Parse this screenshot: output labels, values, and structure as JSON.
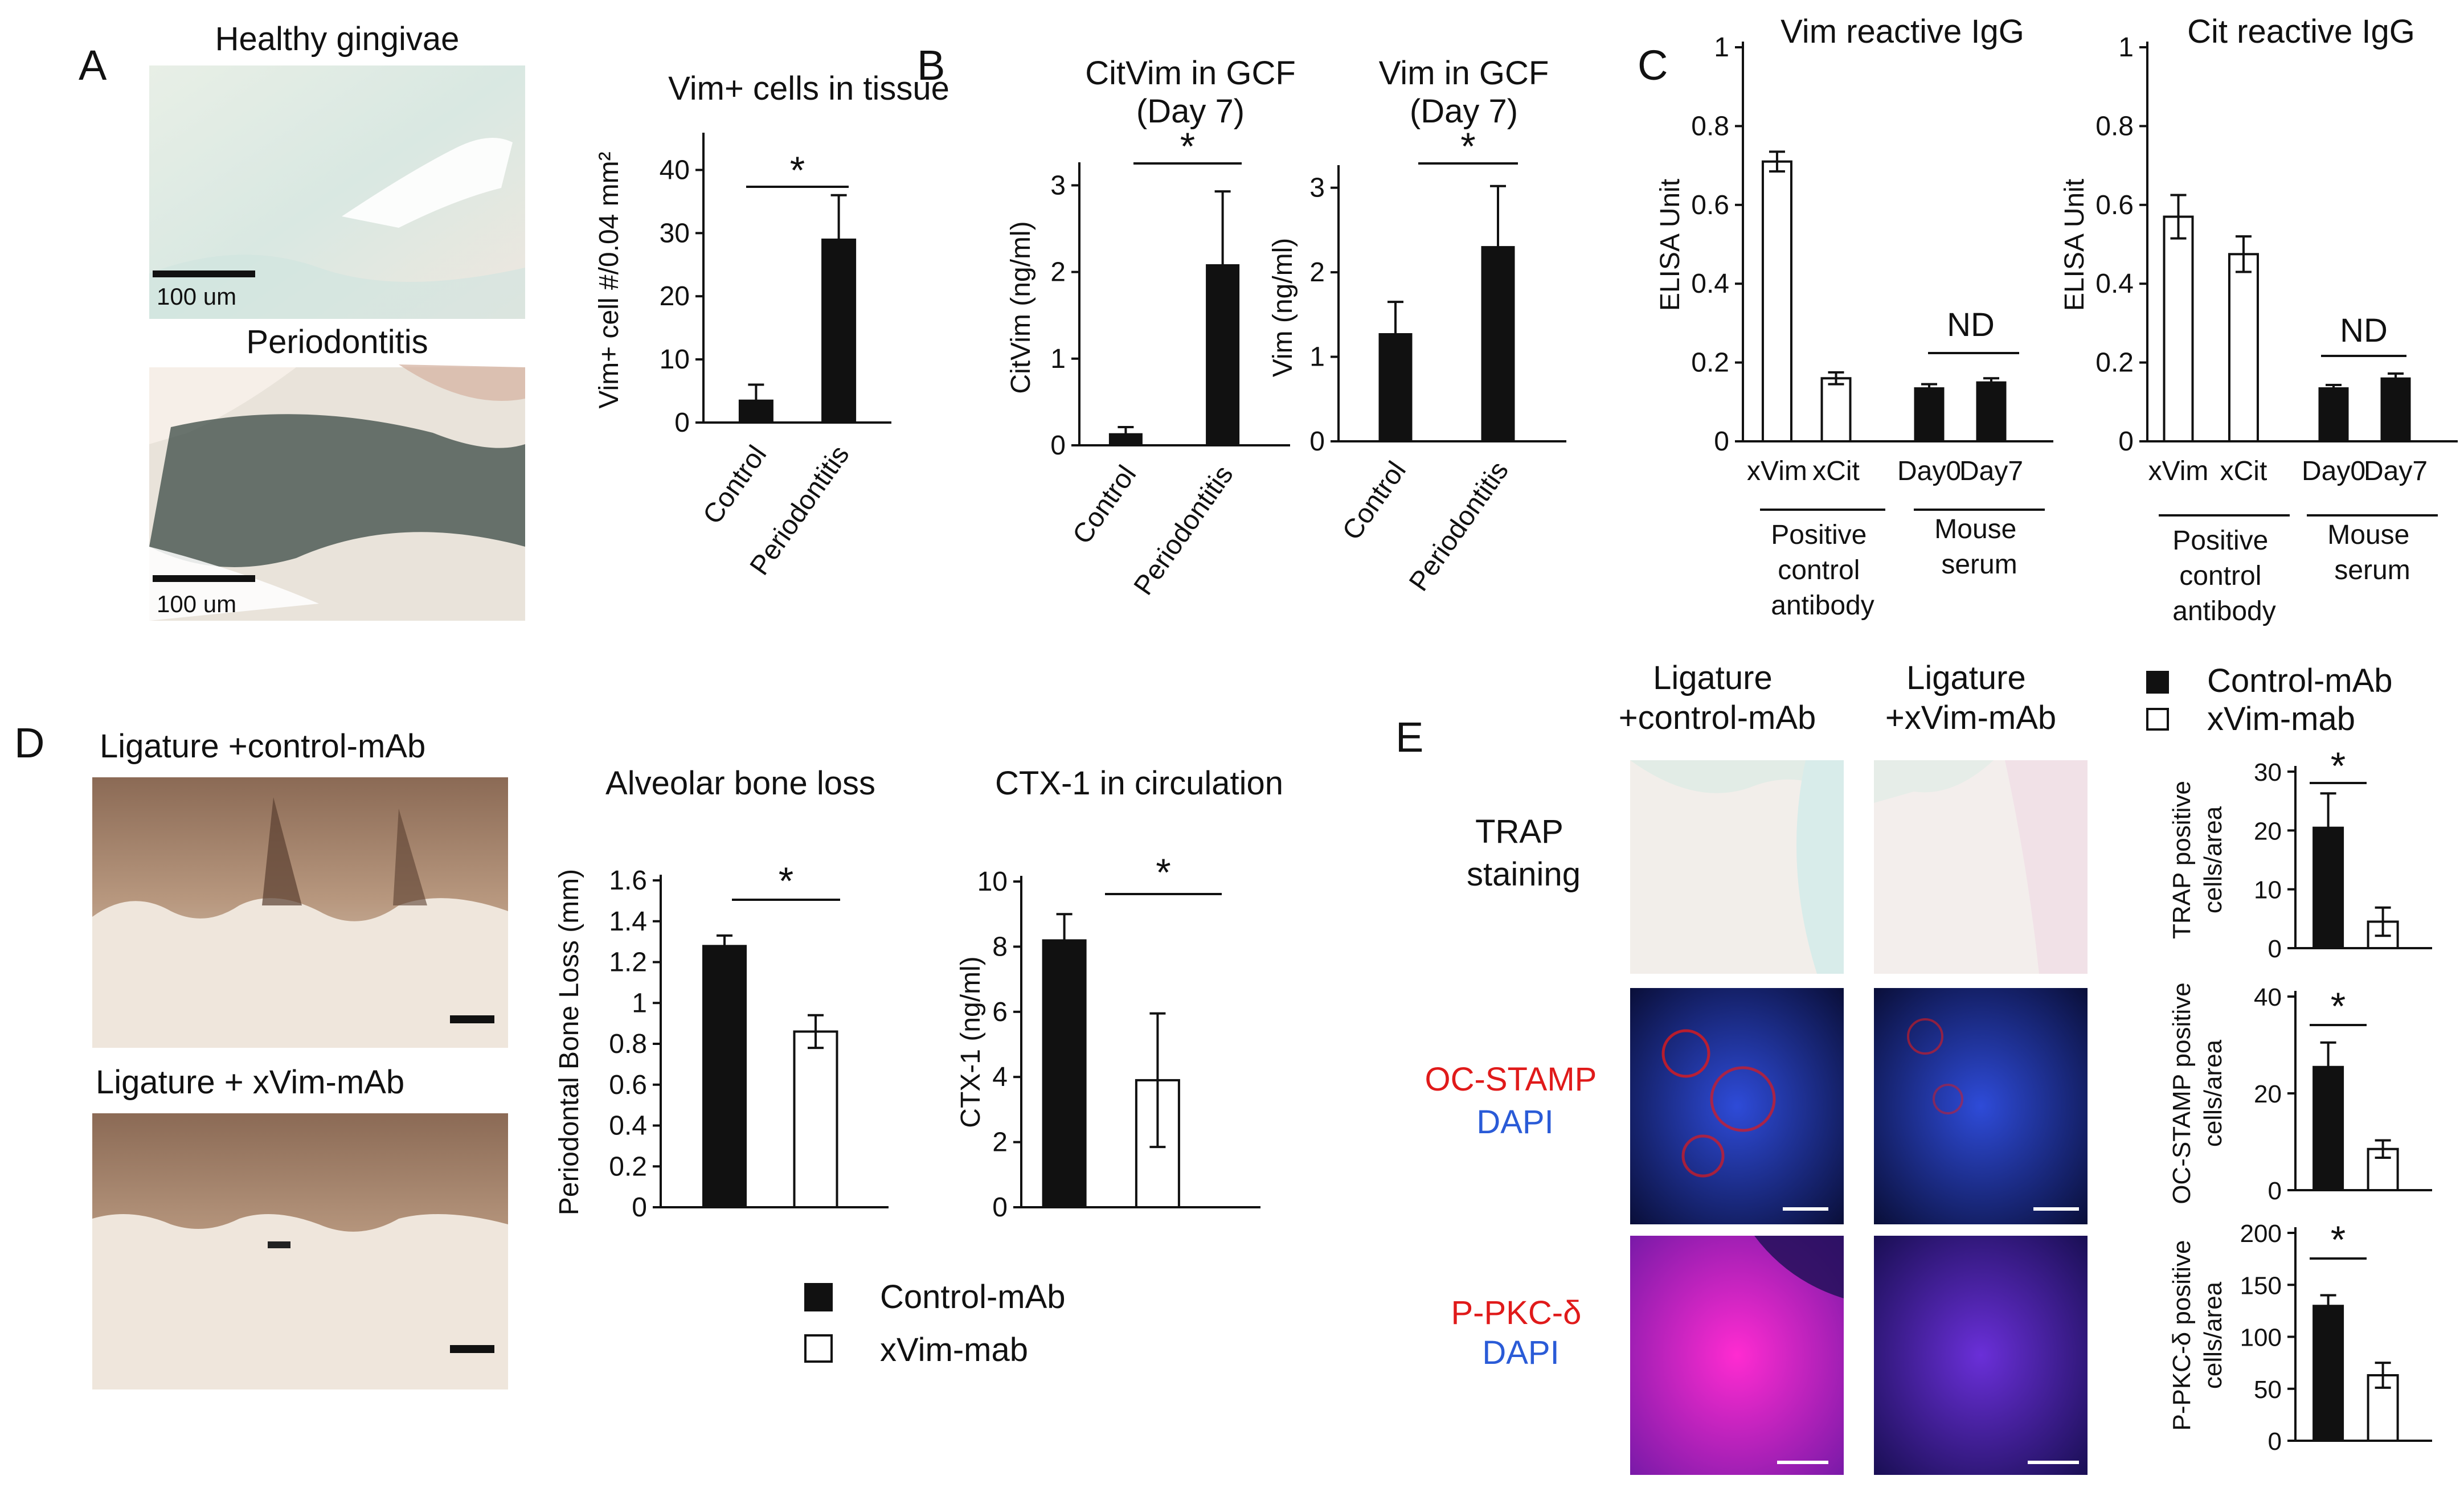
{
  "panel_letters": [
    "A",
    "B",
    "C",
    "D",
    "E"
  ],
  "panel_a": {
    "images": {
      "top_label": "Healthy gingivae",
      "bottom_label": "Periodontitis",
      "scale_text_top": "100 um",
      "scale_text_bottom": "100 um"
    }
  },
  "panel_c_annotations": {
    "vim": {
      "nd": "ND",
      "group_positive": "Positive control antibody",
      "group_mouse": "Mouse serum"
    },
    "cit": {
      "nd": "ND",
      "group_positive": "Positive control antibody",
      "group_mouse": "Mouse serum"
    }
  },
  "panel_d": {
    "image_labels": [
      "Ligature +control-mAb",
      "Ligature + xVim-mAb"
    ],
    "legend": {
      "black": "Control-mAb",
      "white": "xVim-mab"
    }
  },
  "panel_e": {
    "column_labels": [
      "Ligature +control-mAb",
      "Ligature +xVim-mAb"
    ],
    "row_labels": [
      {
        "line1": "TRAP",
        "line2": "staining"
      },
      {
        "line1": "OC-STAMP",
        "line2": "DAPI"
      },
      {
        "line1": "P-PKC-δ",
        "line2": "DAPI"
      }
    ],
    "legend": {
      "black": "Control-mAb",
      "white": "xVim-mab"
    }
  },
  "colors": {
    "bar_dark": "#111111",
    "bar_light": "#ffffff",
    "label_red": "#e01a1a",
    "label_blue": "#2a5bd7"
  },
  "chart_data": [
    {
      "id": "a",
      "type": "bar",
      "title": "Vim+ cells in tissue",
      "ylabel": "Vim+ cell #/0.04 mm²",
      "ylim": [
        0,
        45
      ],
      "yticks": [
        "0",
        "10",
        "20",
        "30",
        "40"
      ],
      "categories": [
        "Control",
        "Periodontitis"
      ],
      "series": [
        {
          "values": [
            3.5,
            29
          ],
          "errors": [
            2.5,
            7
          ],
          "fills": [
            "black",
            "black"
          ]
        }
      ],
      "significance": "*"
    },
    {
      "id": "b1",
      "type": "bar",
      "title": "CitVim in GCF (Day 7)",
      "ylabel": "CitVim (ng/ml)",
      "ylim": [
        0,
        3.2
      ],
      "yticks": [
        "0",
        "1",
        "2",
        "3"
      ],
      "categories": [
        "Control",
        "Periodontitis"
      ],
      "series": [
        {
          "values": [
            0.13,
            2.08
          ],
          "errors": [
            0.08,
            0.85
          ],
          "fills": [
            "black",
            "black"
          ]
        }
      ],
      "significance": "*"
    },
    {
      "id": "b2",
      "type": "bar",
      "title": "Vim in GCF (Day 7)",
      "ylabel": "Vim (ng/ml)",
      "ylim": [
        0,
        3.2
      ],
      "yticks": [
        "0",
        "1",
        "2",
        "3"
      ],
      "categories": [
        "Control",
        "Periodontitis"
      ],
      "series": [
        {
          "values": [
            1.27,
            2.3
          ],
          "errors": [
            0.38,
            0.72
          ],
          "fills": [
            "black",
            "black"
          ]
        }
      ],
      "significance": "*"
    },
    {
      "id": "c1",
      "type": "bar",
      "title": "Vim reactive IgG",
      "ylabel": "ELISA Unit",
      "ylim": [
        0,
        1
      ],
      "yticks": [
        "0",
        "0.2",
        "0.4",
        "0.6",
        "0.8",
        "1"
      ],
      "categories": [
        "xVim",
        "xCit",
        "Day0",
        "Day7"
      ],
      "series": [
        {
          "values": [
            0.71,
            0.16,
            0.135,
            0.15
          ],
          "errors": [
            0.025,
            0.015,
            0.01,
            0.01
          ],
          "fills": [
            "white",
            "white",
            "black",
            "black"
          ]
        }
      ]
    },
    {
      "id": "c2",
      "type": "bar",
      "title": "Cit reactive IgG",
      "ylabel": "ELISA Unit",
      "ylim": [
        0,
        1
      ],
      "yticks": [
        "0",
        "0.2",
        "0.4",
        "0.6",
        "0.8",
        "1"
      ],
      "categories": [
        "xVim",
        "xCit",
        "Day0",
        "Day7"
      ],
      "series": [
        {
          "values": [
            0.57,
            0.475,
            0.135,
            0.16
          ],
          "errors": [
            0.055,
            0.045,
            0.008,
            0.012
          ],
          "fills": [
            "white",
            "white",
            "black",
            "black"
          ]
        }
      ]
    },
    {
      "id": "d1",
      "type": "bar",
      "title": "Alveolar bone loss",
      "ylabel": "Periodontal Bone Loss (mm)",
      "ylim": [
        0,
        1.6
      ],
      "yticks": [
        "0",
        "0.2",
        "0.4",
        "0.6",
        "0.8",
        "1",
        "1.2",
        "1.4",
        "1.6"
      ],
      "categories": [
        "",
        ""
      ],
      "series": [
        {
          "values": [
            1.28,
            0.86
          ],
          "errors": [
            0.05,
            0.08
          ],
          "fills": [
            "black",
            "white"
          ]
        }
      ],
      "significance": "*"
    },
    {
      "id": "d2",
      "type": "bar",
      "title": "CTX-1 in circulation",
      "ylabel": "CTX-1 (ng/ml)",
      "ylim": [
        0,
        10
      ],
      "yticks": [
        "0",
        "2",
        "4",
        "6",
        "8",
        "10"
      ],
      "categories": [
        "",
        ""
      ],
      "series": [
        {
          "values": [
            8.2,
            3.9
          ],
          "errors": [
            0.8,
            2.05
          ],
          "fills": [
            "black",
            "white"
          ]
        }
      ],
      "significance": "*"
    },
    {
      "id": "e1",
      "type": "bar",
      "title": "",
      "ylabel": "TRAP positive cells/area",
      "ylim": [
        0,
        30
      ],
      "yticks": [
        "0",
        "10",
        "20",
        "30"
      ],
      "categories": [
        "",
        ""
      ],
      "series": [
        {
          "values": [
            20.5,
            4.5
          ],
          "errors": [
            5.8,
            2.4
          ],
          "fills": [
            "black",
            "white"
          ]
        }
      ],
      "significance": "*"
    },
    {
      "id": "e2",
      "type": "bar",
      "title": "",
      "ylabel": "OC-STAMP positive cells/area",
      "ylim": [
        0,
        40
      ],
      "yticks": [
        "0",
        "20",
        "40"
      ],
      "categories": [
        "",
        ""
      ],
      "series": [
        {
          "values": [
            25.5,
            8.5
          ],
          "errors": [
            5,
            1.8
          ],
          "fills": [
            "black",
            "white"
          ]
        }
      ],
      "significance": "*"
    },
    {
      "id": "e3",
      "type": "bar",
      "title": "",
      "ylabel": "P-PKC-δ positive cells/area",
      "ylim": [
        0,
        200
      ],
      "yticks": [
        "0",
        "50",
        "100",
        "150",
        "200"
      ],
      "categories": [
        "",
        ""
      ],
      "series": [
        {
          "values": [
            130,
            63
          ],
          "errors": [
            10,
            12
          ],
          "fills": [
            "black",
            "white"
          ]
        }
      ],
      "significance": "*"
    }
  ]
}
